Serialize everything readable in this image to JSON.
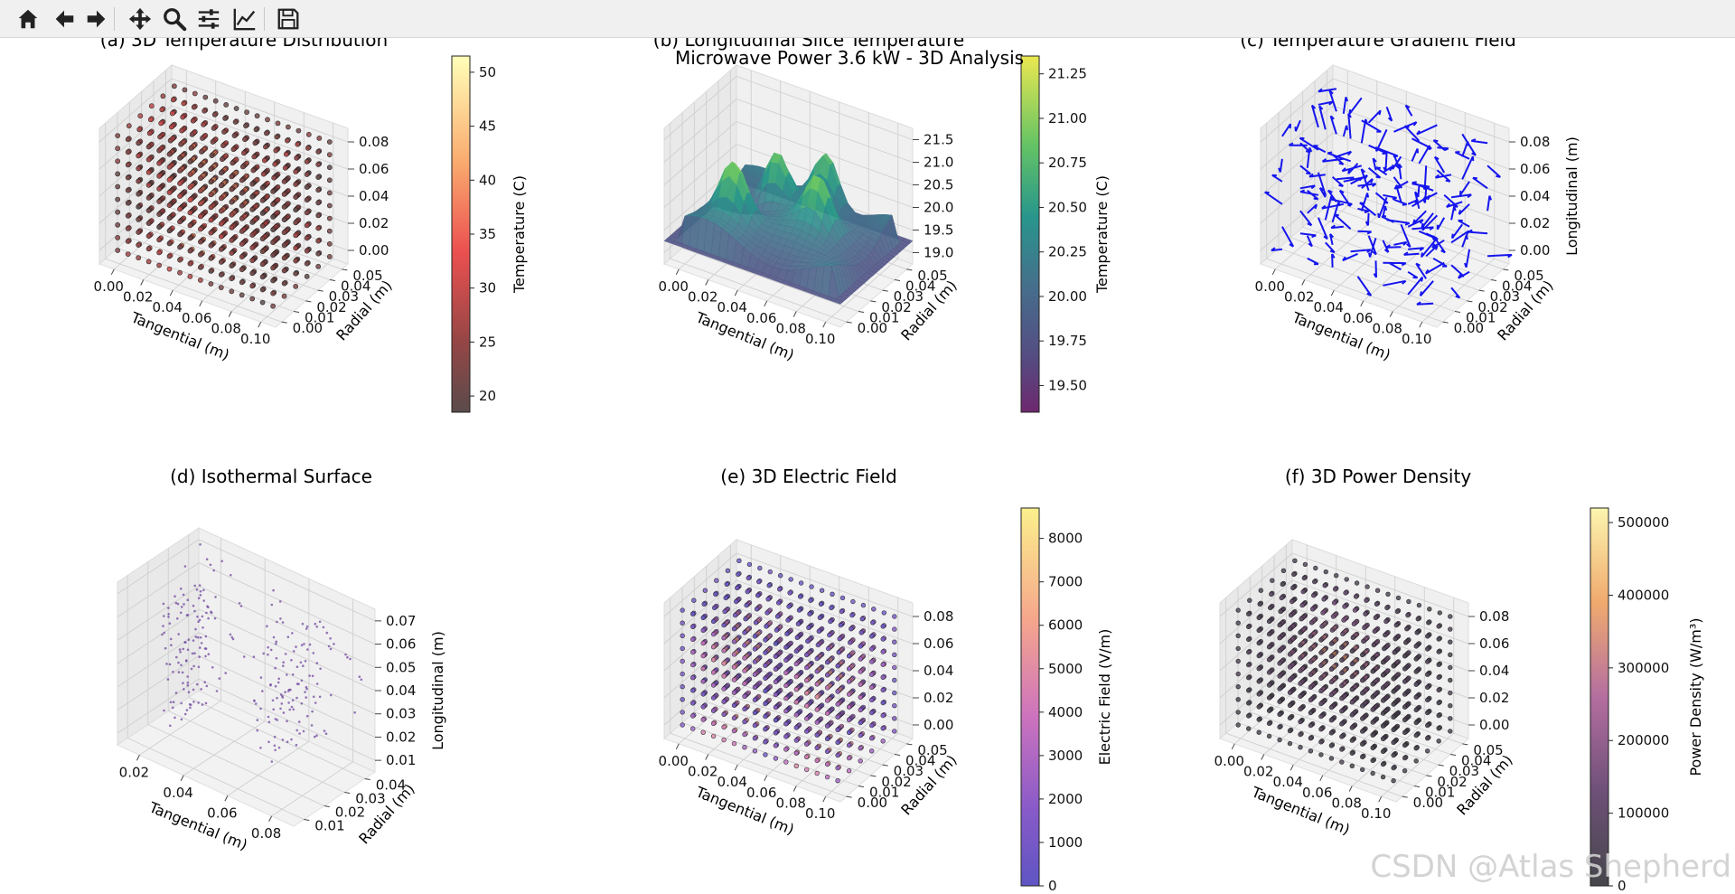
{
  "suptitle": "Microwave Power 3.6 kW - 3D Analysis",
  "watermark": "CSDN @Atlas Shepherd",
  "toolbar": [
    {
      "name": "home-icon",
      "icon": "home"
    },
    {
      "name": "back-icon",
      "icon": "back"
    },
    {
      "name": "forward-icon",
      "icon": "forward"
    },
    {
      "name": "pan-icon",
      "icon": "pan"
    },
    {
      "name": "zoom-icon",
      "icon": "zoom"
    },
    {
      "name": "configure-subplots-icon",
      "icon": "sliders"
    },
    {
      "name": "edit-axis-icon",
      "icon": "lines"
    },
    {
      "name": "save-icon",
      "icon": "save"
    }
  ],
  "chart_data": [
    {
      "id": "a",
      "type": "scatter3d",
      "title": "(a) 3D Temperature Distribution",
      "xlabel": "Tangential (m)",
      "ylabel": "Radial (m)",
      "zlabel": "",
      "x_ticks": [
        "0.00",
        "0.02",
        "0.04",
        "0.06",
        "0.08",
        "0.10"
      ],
      "y_ticks": [
        "0.00",
        "0.01",
        "0.02",
        "0.03",
        "0.04",
        "0.05"
      ],
      "z_ticks": [
        "0.00",
        "0.02",
        "0.04",
        "0.06",
        "0.08"
      ],
      "colormap": "hot-alpha",
      "marker_size": 2.6,
      "colorbar": {
        "label": "Temperature (C)",
        "min": 18.5,
        "max": 51.5,
        "ticks": [
          20,
          25,
          30,
          35,
          40,
          45,
          50
        ]
      }
    },
    {
      "id": "b",
      "type": "surface3d",
      "title": "(b) Longitudinal Slice Temperature",
      "xlabel": "Tangential (m)",
      "ylabel": "Radial (m)",
      "zlabel": "",
      "x_ticks": [
        "0.00",
        "0.02",
        "0.04",
        "0.06",
        "0.08",
        "0.10"
      ],
      "y_ticks": [
        "0.00",
        "0.01",
        "0.02",
        "0.03",
        "0.04",
        "0.05"
      ],
      "z_ticks": [
        "19.0",
        "19.5",
        "20.0",
        "20.5",
        "21.0",
        "21.5"
      ],
      "colormap": "viridis",
      "colorbar": {
        "label": "Temperature (C)",
        "min": 19.35,
        "max": 21.35,
        "ticks": [
          "19.50",
          "19.75",
          "20.00",
          "20.25",
          "20.50",
          "20.75",
          "21.00",
          "21.25"
        ]
      }
    },
    {
      "id": "c",
      "type": "quiver3d",
      "title": "(c) Temperature Gradient Field",
      "xlabel": "Tangential (m)",
      "ylabel": "Radial (m)",
      "zlabel": "Longitudinal (m)",
      "x_ticks": [
        "0.00",
        "0.02",
        "0.04",
        "0.06",
        "0.08",
        "0.10"
      ],
      "y_ticks": [
        "0.00",
        "0.01",
        "0.02",
        "0.03",
        "0.04",
        "0.05"
      ],
      "z_ticks": [
        "0.00",
        "0.02",
        "0.04",
        "0.06",
        "0.08"
      ],
      "color": "#1515ee"
    },
    {
      "id": "d",
      "type": "scatter3d",
      "title": "(d) Isothermal Surface",
      "xlabel": "Tangential (m)",
      "ylabel": "Radial (m)",
      "zlabel": "Longitudinal (m)",
      "x_ticks": [
        "0.02",
        "0.04",
        "0.06",
        "0.08"
      ],
      "y_ticks": [
        "0.01",
        "0.02",
        "0.03",
        "0.04"
      ],
      "z_ticks": [
        "0.01",
        "0.02",
        "0.03",
        "0.04",
        "0.05",
        "0.06",
        "0.07"
      ],
      "color": "#6a3d9a"
    },
    {
      "id": "e",
      "type": "scatter3d",
      "title": "(e) 3D Electric Field",
      "xlabel": "Tangential (m)",
      "ylabel": "Radial (m)",
      "zlabel": "",
      "x_ticks": [
        "0.00",
        "0.02",
        "0.04",
        "0.06",
        "0.08",
        "0.10"
      ],
      "y_ticks": [
        "0.00",
        "0.01",
        "0.02",
        "0.03",
        "0.04",
        "0.05"
      ],
      "z_ticks": [
        "0.00",
        "0.02",
        "0.04",
        "0.06",
        "0.08"
      ],
      "colormap": "plasma",
      "marker_size": 2.4,
      "colorbar": {
        "label": "Electric Field (V/m)",
        "min": 0,
        "max": 8700,
        "ticks": [
          0,
          1000,
          2000,
          3000,
          4000,
          5000,
          6000,
          7000,
          8000
        ]
      }
    },
    {
      "id": "f",
      "type": "scatter3d",
      "title": "(f) 3D Power Density",
      "xlabel": "Tangential (m)",
      "ylabel": "Radial (m)",
      "zlabel": "",
      "x_ticks": [
        "0.00",
        "0.02",
        "0.04",
        "0.06",
        "0.08",
        "0.10"
      ],
      "y_ticks": [
        "0.00",
        "0.01",
        "0.02",
        "0.03",
        "0.04",
        "0.05"
      ],
      "z_ticks": [
        "0.00",
        "0.02",
        "0.04",
        "0.06",
        "0.08"
      ],
      "colormap": "magma",
      "marker_size": 2.4,
      "colorbar": {
        "label": "Power Density (W/m³)",
        "min": 0,
        "max": 520000,
        "ticks": [
          0,
          100000,
          200000,
          300000,
          400000,
          500000
        ]
      }
    }
  ]
}
